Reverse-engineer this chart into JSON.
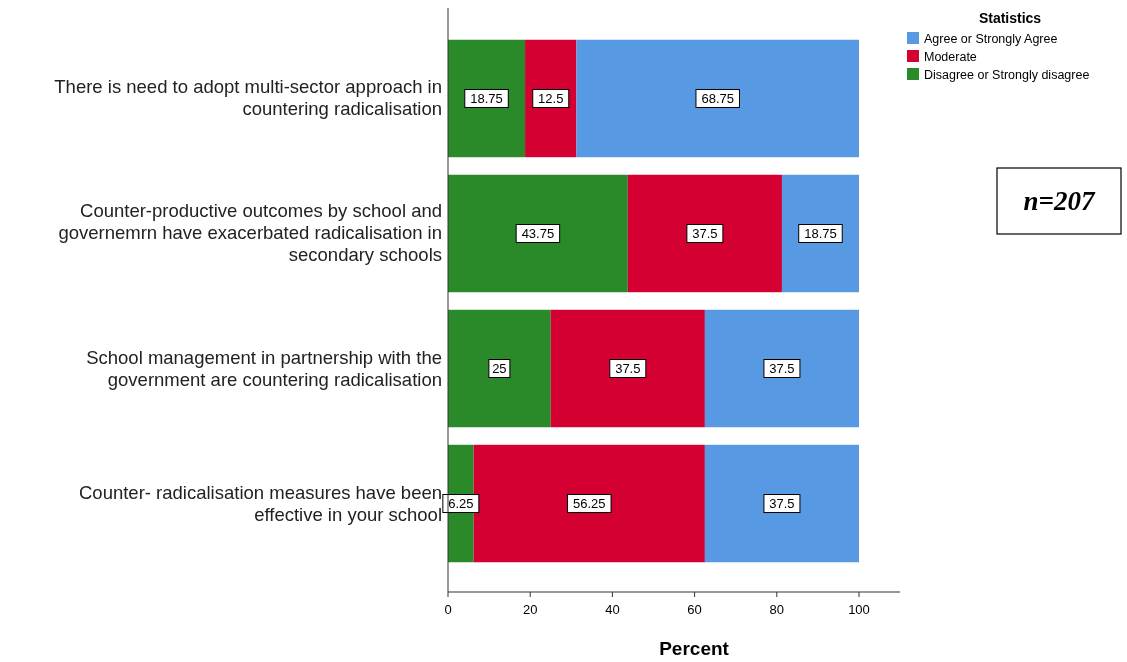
{
  "chart_data": {
    "type": "bar",
    "orientation": "horizontal",
    "stacked": true,
    "xlabel": "Percent",
    "legend_title": "Statistics",
    "legend": "top right",
    "data_labels": true,
    "grid": false,
    "categories": [
      "There is need to adopt multi-sector approach in countering radicalisation",
      "Counter-productive outcomes by school and governemrn have exacerbated radicalisation in secondary schools",
      "School management in partnership with the government are countering radicalisation",
      "Counter- radicalisation measures have been effective in your school"
    ],
    "series": [
      {
        "name": "Disagree or Strongly disagree",
        "color": "#2a8a2a",
        "values": [
          18.75,
          43.75,
          25,
          6.25
        ]
      },
      {
        "name": "Moderate",
        "color": "#d50032",
        "values": [
          12.5,
          37.5,
          37.5,
          56.25
        ]
      },
      {
        "name": "Agree or Strongly Agree",
        "color": "#5899e3",
        "values": [
          68.75,
          18.75,
          37.5,
          37.5
        ]
      }
    ],
    "xlim": [
      0,
      110
    ],
    "xticks": [
      0,
      20,
      40,
      60,
      80,
      100
    ],
    "annotations": [
      "n=207"
    ]
  }
}
